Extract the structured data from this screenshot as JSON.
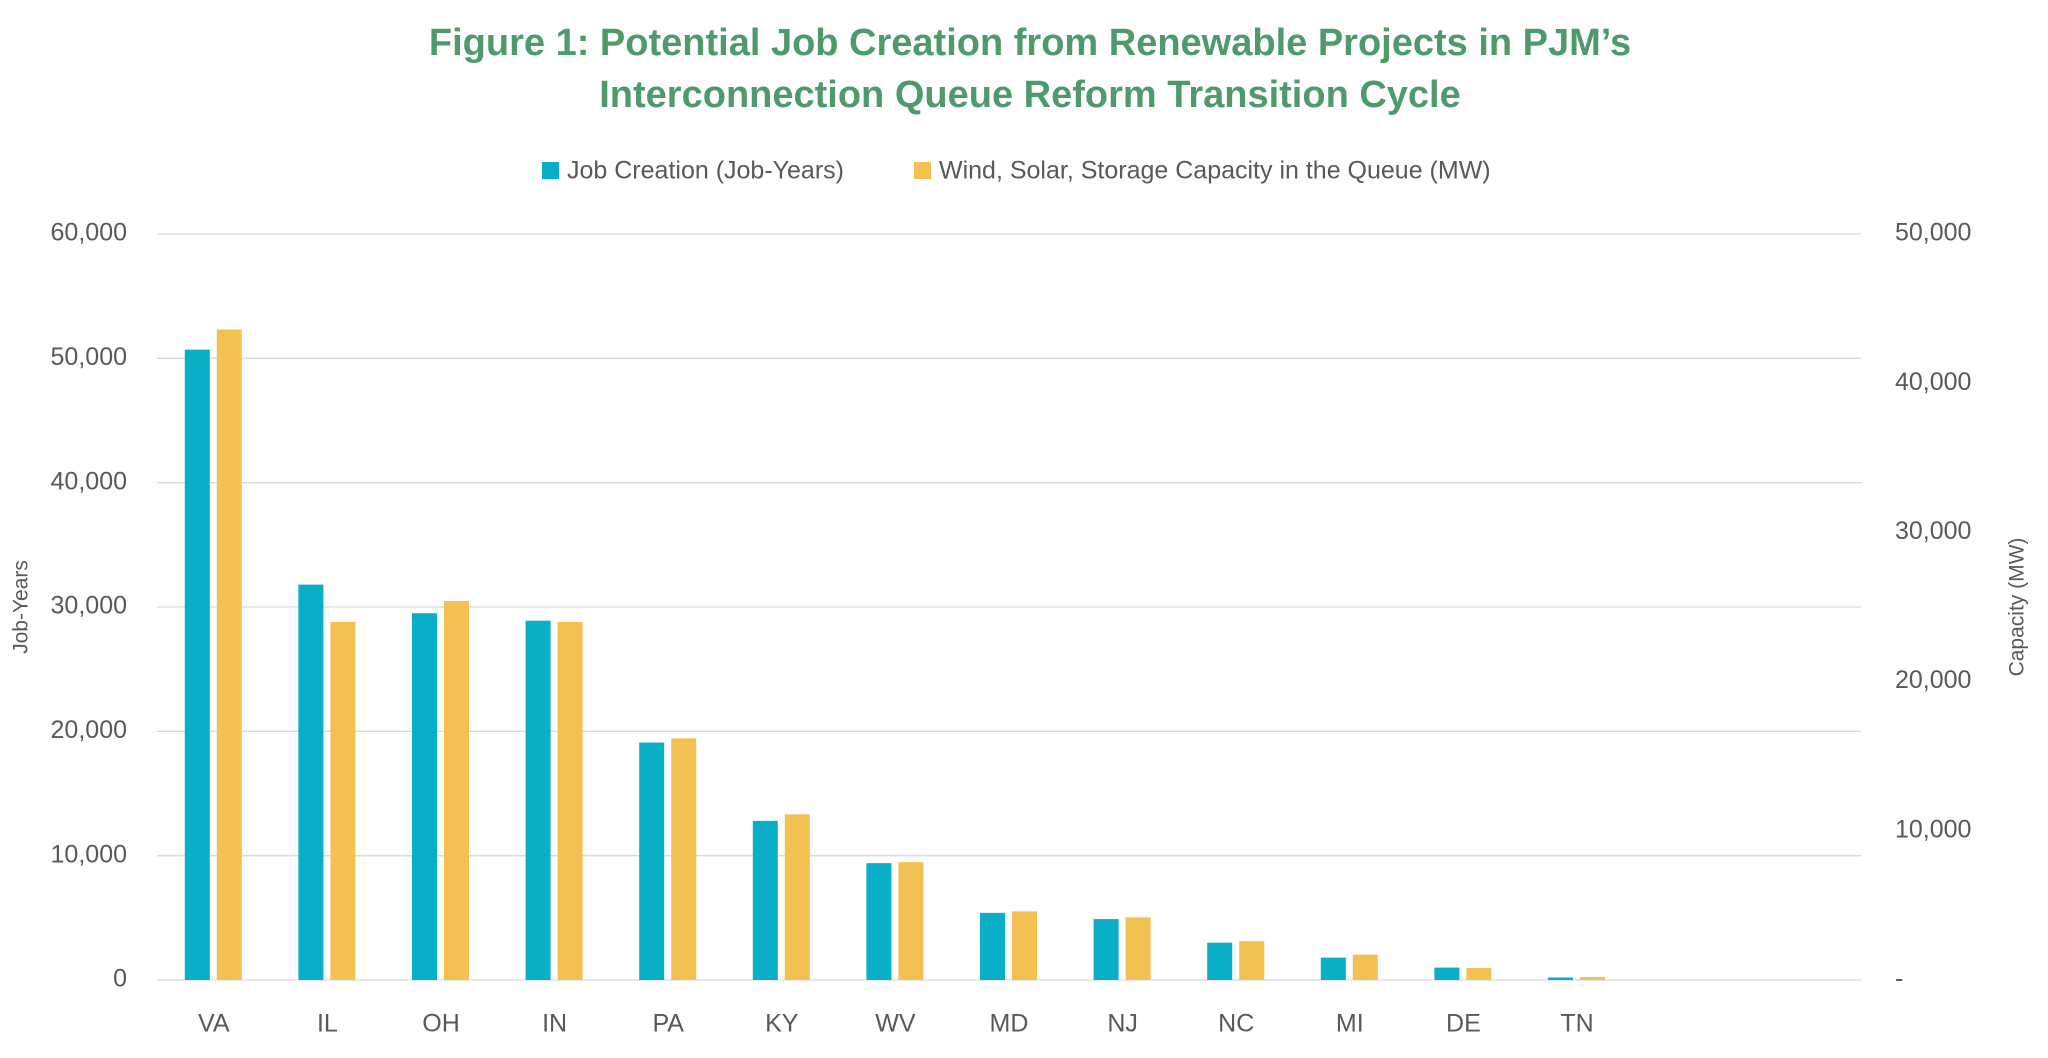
{
  "chart_data": {
    "type": "bar",
    "title": [
      "Figure 1: Potential Job Creation from Renewable Projects in PJM’s",
      "Interconnection Queue Reform Transition Cycle"
    ],
    "y_label": "Job-Years",
    "y2_label": "Capacity (MW)",
    "categories": [
      "VA",
      "IL",
      "OH",
      "IN",
      "PA",
      "KY",
      "WV",
      "MD",
      "NJ",
      "NC",
      "MI",
      "DE",
      "TN",
      null,
      null
    ],
    "series": [
      {
        "name": "Job Creation (Job-Years)",
        "color": "#0aaec6",
        "values": [
          50700,
          31800,
          29500,
          28900,
          19100,
          12800,
          9400,
          5400,
          4900,
          3000,
          1800,
          1000,
          200,
          null,
          null
        ]
      },
      {
        "name": "Wind, Solar, Storage Capacity in the Queue (MW)",
        "color": "#f2c152",
        "axis": "y2",
        "values": [
          43600,
          24000,
          25400,
          24000,
          16200,
          11100,
          7900,
          4600,
          4200,
          2600,
          1700,
          800,
          200,
          null,
          null
        ]
      }
    ],
    "ylim": [
      0,
      60000
    ],
    "yticks": [
      0,
      {
        "value": 10000,
        "label": "10,000"
      },
      {
        "value": 20000,
        "label": "20,000"
      },
      {
        "value": 30000,
        "label": "30,000"
      },
      {
        "value": 40000,
        "label": "40,000"
      },
      {
        "value": 50000,
        "label": "50,000"
      },
      {
        "value": 60000,
        "label": "60,000"
      }
    ],
    "y2lim": [
      0,
      50000
    ],
    "y2ticks": [
      {
        "value": 0,
        "label": "-"
      },
      {
        "value": 10000,
        "label": "10,000"
      },
      {
        "value": 20000,
        "label": "20,000"
      },
      {
        "value": 30000,
        "label": "30,000"
      },
      {
        "value": 40000,
        "label": "40,000"
      },
      {
        "value": 50000,
        "label": "50,000"
      }
    ],
    "grid": true,
    "legend": "top"
  }
}
